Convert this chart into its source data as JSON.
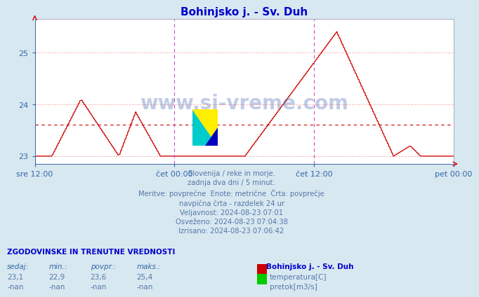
{
  "title": "Bohinjsko j. - Sv. Duh",
  "title_color": "#0000cc",
  "bg_color": "#d8e8f0",
  "plot_bg_color": "#ffffff",
  "grid_color_h": "#ffaaaa",
  "grid_color_v": "#cccccc",
  "temp_line_color": "#cc0000",
  "avg_line_color": "#cc0000",
  "vline_color": "#cc44cc",
  "ylim": [
    22.85,
    25.65
  ],
  "yticks": [
    23,
    24,
    25
  ],
  "avg_value": 23.6,
  "xlabel_times": [
    "sre 12:00",
    "čet 00:00",
    "čet 12:00",
    "pet 00:00"
  ],
  "info_lines": [
    "Slovenija / reke in morje.",
    "zadnja dva dni / 5 minut.",
    "Meritve: povprečne  Enote: metrične  Črta: povprečje",
    "navpična črta - razdelek 24 ur",
    "Veljavnost: 2024-08-23 07:01",
    "Osveženo: 2024-08-23 07:04:38",
    "Izrisano: 2024-08-23 07:06:42"
  ],
  "legend_title": "Bohinjsko j. - Sv. Duh",
  "legend_items": [
    {
      "label": "temperatura[C]",
      "color": "#cc0000"
    },
    {
      "label": "pretok[m3/s]",
      "color": "#00cc00"
    }
  ],
  "stats_headers": [
    "sedaj:",
    "min.:",
    "povpr.:",
    "maks.:"
  ],
  "stats_temp": [
    "23,1",
    "22,9",
    "23,6",
    "25,4"
  ],
  "stats_pretok": [
    "-nan",
    "-nan",
    "-nan",
    "-nan"
  ],
  "num_points": 576
}
